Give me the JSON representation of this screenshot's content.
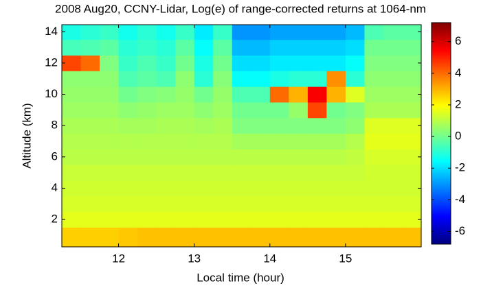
{
  "chart_data": {
    "type": "heatmap",
    "title": "2008 Aug20, CCNY-Lidar, Log(e) of range-corrected returns at 1064-nm",
    "x_label": "Local time (hour)",
    "y_label": "Altitude (km)",
    "x": [
      11.375,
      11.625,
      11.875,
      12.125,
      12.375,
      12.625,
      12.875,
      13.125,
      13.375,
      13.625,
      13.875,
      14.125,
      14.375,
      14.625,
      14.875,
      15.125,
      15.375,
      15.625,
      15.875
    ],
    "y": [
      1,
      2,
      3,
      4,
      5,
      6,
      7,
      8,
      9,
      10,
      11,
      12,
      13,
      14
    ],
    "z": [
      [
        2.6,
        2.6,
        2.6,
        2.7,
        2.8,
        2.8,
        2.8,
        2.8,
        2.8,
        2.8,
        2.8,
        2.8,
        2.8,
        2.8,
        2.8,
        2.8,
        2.8,
        2.8,
        2.8
      ],
      [
        1.6,
        1.6,
        1.6,
        1.6,
        1.6,
        1.6,
        1.6,
        1.6,
        1.6,
        1.6,
        1.6,
        1.6,
        1.6,
        1.6,
        1.6,
        1.6,
        1.6,
        1.6,
        1.6
      ],
      [
        1.4,
        1.4,
        1.4,
        1.4,
        1.4,
        1.4,
        1.4,
        1.4,
        1.4,
        1.4,
        1.4,
        1.4,
        1.4,
        1.4,
        1.4,
        1.4,
        1.4,
        1.4,
        1.4
      ],
      [
        1.3,
        1.3,
        1.3,
        1.3,
        1.3,
        1.3,
        1.3,
        1.3,
        1.3,
        1.3,
        1.3,
        1.3,
        1.3,
        1.3,
        1.3,
        1.3,
        1.3,
        1.3,
        1.3
      ],
      [
        1.2,
        1.2,
        1.2,
        1.2,
        1.2,
        1.2,
        1.2,
        1.2,
        1.2,
        1.2,
        1.2,
        1.2,
        1.2,
        1.2,
        1.2,
        1.2,
        1.3,
        1.3,
        1.3
      ],
      [
        1.0,
        1.0,
        1.0,
        1.0,
        1.0,
        1.0,
        1.0,
        1.0,
        1.0,
        1.0,
        1.0,
        1.0,
        1.0,
        1.0,
        1.0,
        1.1,
        1.4,
        1.4,
        1.4
      ],
      [
        0.9,
        0.9,
        0.9,
        0.9,
        0.9,
        0.9,
        0.9,
        0.9,
        0.9,
        0.7,
        0.7,
        0.7,
        0.7,
        0.7,
        0.7,
        0.9,
        1.6,
        1.6,
        1.6
      ],
      [
        0.8,
        0.8,
        0.8,
        0.7,
        0.7,
        0.8,
        0.8,
        0.7,
        0.8,
        0.2,
        0.2,
        0.2,
        0.2,
        0.2,
        0.2,
        0.4,
        1.5,
        1.5,
        1.5
      ],
      [
        0.6,
        0.6,
        0.6,
        0.4,
        0.5,
        0.6,
        0.6,
        0.4,
        0.6,
        0.0,
        0.0,
        0.0,
        0.5,
        4.5,
        0.0,
        0.2,
        0.8,
        0.8,
        0.8
      ],
      [
        0.5,
        0.5,
        0.5,
        0.0,
        0.2,
        0.3,
        0.5,
        0.0,
        0.5,
        -0.5,
        -0.5,
        4.0,
        3.0,
        5.5,
        3.0,
        1.5,
        0.6,
        0.6,
        0.6
      ],
      [
        0.4,
        0.4,
        0.4,
        -0.5,
        -0.3,
        -0.5,
        0.4,
        -1.0,
        0.3,
        -1.5,
        -1.5,
        -1.2,
        -1.0,
        -1.0,
        3.5,
        -1.0,
        0.4,
        0.4,
        0.4
      ],
      [
        4.5,
        4.0,
        0.2,
        -0.8,
        -0.5,
        -0.8,
        0.0,
        -1.2,
        0.0,
        -2.0,
        -2.0,
        -1.8,
        -1.8,
        -1.8,
        -1.8,
        -1.5,
        0.2,
        0.2,
        0.2
      ],
      [
        -0.6,
        -0.5,
        -0.3,
        -1.0,
        -0.8,
        -1.0,
        -0.3,
        -1.5,
        -0.3,
        -2.5,
        -2.5,
        -2.2,
        -2.2,
        -2.2,
        -2.2,
        -2.0,
        0.0,
        0.0,
        0.0
      ],
      [
        -1.2,
        -1.0,
        -0.8,
        -1.3,
        -1.0,
        -1.3,
        -0.8,
        -1.8,
        -0.8,
        -3.0,
        -3.0,
        -2.8,
        -2.8,
        -2.8,
        -2.8,
        -2.5,
        -0.5,
        -0.3,
        -0.3
      ]
    ],
    "xlim": [
      11.25,
      16.0
    ],
    "ylim": [
      0.25,
      14.45
    ],
    "xticks": [
      12,
      13,
      14,
      15
    ],
    "yticks": [
      2,
      4,
      6,
      8,
      10,
      12,
      14
    ],
    "clim": [
      -6.8,
      7.2
    ],
    "cticks": [
      -6,
      -4,
      -2,
      0,
      2,
      4,
      6
    ],
    "colormap": "jet"
  }
}
